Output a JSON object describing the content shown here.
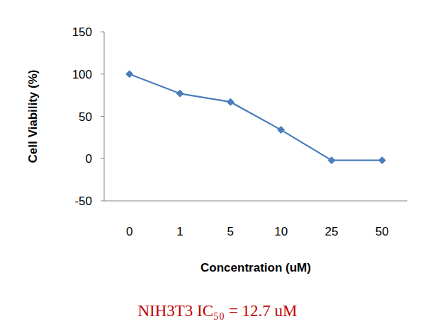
{
  "chart_data": {
    "type": "line",
    "y_label": "Cell Viability (%)",
    "x_label": "Concentration (uM)",
    "annotation": "NIH3T3 IC₅₀ = 12.7 uM",
    "categories": [
      "0",
      "1",
      "5",
      "10",
      "25",
      "50"
    ],
    "values": [
      100,
      77,
      67,
      34,
      -2,
      -2
    ],
    "color": "#4a7ebb",
    "marker": "diamond",
    "line_style": "solid",
    "ylim": [
      -50,
      150
    ],
    "yticks": [
      -50,
      0,
      50,
      100,
      150
    ],
    "grid": false
  }
}
